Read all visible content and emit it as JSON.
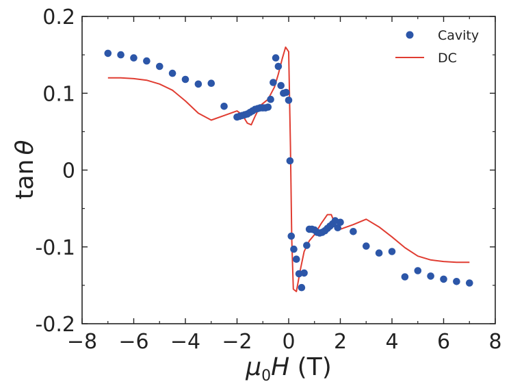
{
  "chart_data": {
    "type": "scatter",
    "xlabel_parts": {
      "mu": "μ",
      "sub": "0",
      "h": "H",
      "unit": " (T)"
    },
    "ylabel_parts": {
      "fn": "tan",
      "theta": "θ"
    },
    "xlim": [
      -8,
      8
    ],
    "ylim": [
      -0.2,
      0.2
    ],
    "x_ticks": [
      -8,
      -6,
      -4,
      -2,
      0,
      2,
      4,
      6,
      8
    ],
    "x_tick_labels": [
      "−8",
      "−6",
      "−4",
      "−2",
      "0",
      "2",
      "4",
      "6",
      "8"
    ],
    "y_ticks": [
      -0.2,
      -0.1,
      0,
      0.1,
      0.2
    ],
    "y_tick_labels": [
      "-0.2",
      "-0.1",
      "0",
      "0.1",
      "0.2"
    ],
    "grid": false,
    "legend_position": "top-right",
    "series": [
      {
        "name": "Cavity",
        "kind": "scatter",
        "color": "#2c56a8",
        "points": [
          [
            -7,
            0.152
          ],
          [
            -6.5,
            0.15
          ],
          [
            -6,
            0.146
          ],
          [
            -5.5,
            0.142
          ],
          [
            -5,
            0.135
          ],
          [
            -4.5,
            0.126
          ],
          [
            -4,
            0.118
          ],
          [
            -3.5,
            0.112
          ],
          [
            -3,
            0.113
          ],
          [
            -2.5,
            0.083
          ],
          [
            -2,
            0.069
          ],
          [
            -1.9,
            0.07
          ],
          [
            -1.8,
            0.071
          ],
          [
            -1.7,
            0.072
          ],
          [
            -1.6,
            0.073
          ],
          [
            -1.5,
            0.075
          ],
          [
            -1.4,
            0.077
          ],
          [
            -1.3,
            0.079
          ],
          [
            -1.2,
            0.08
          ],
          [
            -1.1,
            0.081
          ],
          [
            -1,
            0.081
          ],
          [
            -0.9,
            0.081
          ],
          [
            -0.8,
            0.082
          ],
          [
            -0.7,
            0.092
          ],
          [
            -0.6,
            0.114
          ],
          [
            -0.5,
            0.146
          ],
          [
            -0.4,
            0.135
          ],
          [
            -0.3,
            0.11
          ],
          [
            -0.2,
            0.1
          ],
          [
            -0.1,
            0.101
          ],
          [
            0,
            0.091
          ],
          [
            0.05,
            0.012
          ],
          [
            0.1,
            -0.086
          ],
          [
            0.2,
            -0.103
          ],
          [
            0.3,
            -0.116
          ],
          [
            0.4,
            -0.135
          ],
          [
            0.5,
            -0.153
          ],
          [
            0.6,
            -0.134
          ],
          [
            0.7,
            -0.098
          ],
          [
            0.8,
            -0.077
          ],
          [
            0.9,
            -0.077
          ],
          [
            1,
            -0.078
          ],
          [
            1.1,
            -0.081
          ],
          [
            1.2,
            -0.082
          ],
          [
            1.3,
            -0.081
          ],
          [
            1.4,
            -0.079
          ],
          [
            1.5,
            -0.076
          ],
          [
            1.6,
            -0.073
          ],
          [
            1.7,
            -0.07
          ],
          [
            1.8,
            -0.066
          ],
          [
            1.9,
            -0.075
          ],
          [
            2,
            -0.068
          ],
          [
            2.5,
            -0.08
          ],
          [
            3,
            -0.099
          ],
          [
            3.5,
            -0.108
          ],
          [
            4,
            -0.106
          ],
          [
            4.5,
            -0.139
          ],
          [
            5,
            -0.131
          ],
          [
            5.5,
            -0.138
          ],
          [
            6,
            -0.142
          ],
          [
            6.5,
            -0.145
          ],
          [
            7,
            -0.147
          ]
        ]
      },
      {
        "name": "DC",
        "kind": "line",
        "color": "#e03c31",
        "points": [
          [
            -7,
            0.12
          ],
          [
            -6.5,
            0.12
          ],
          [
            -6,
            0.119
          ],
          [
            -5.5,
            0.117
          ],
          [
            -5,
            0.112
          ],
          [
            -4.5,
            0.104
          ],
          [
            -4,
            0.09
          ],
          [
            -3.5,
            0.074
          ],
          [
            -3,
            0.065
          ],
          [
            -2.5,
            0.071
          ],
          [
            -2,
            0.077
          ],
          [
            -1.8,
            0.072
          ],
          [
            -1.6,
            0.061
          ],
          [
            -1.45,
            0.059
          ],
          [
            -1.3,
            0.07
          ],
          [
            -1.1,
            0.084
          ],
          [
            -0.8,
            0.092
          ],
          [
            -0.55,
            0.108
          ],
          [
            -0.4,
            0.125
          ],
          [
            -0.25,
            0.145
          ],
          [
            -0.12,
            0.16
          ],
          [
            0,
            0.154
          ],
          [
            0.07,
            0.03
          ],
          [
            0.12,
            -0.09
          ],
          [
            0.18,
            -0.155
          ],
          [
            0.3,
            -0.158
          ],
          [
            0.45,
            -0.13
          ],
          [
            0.6,
            -0.106
          ],
          [
            0.8,
            -0.092
          ],
          [
            1,
            -0.084
          ],
          [
            1.25,
            -0.07
          ],
          [
            1.5,
            -0.058
          ],
          [
            1.65,
            -0.058
          ],
          [
            1.85,
            -0.075
          ],
          [
            2,
            -0.077
          ],
          [
            2.5,
            -0.071
          ],
          [
            3,
            -0.064
          ],
          [
            3.5,
            -0.074
          ],
          [
            4,
            -0.087
          ],
          [
            4.5,
            -0.101
          ],
          [
            5,
            -0.112
          ],
          [
            5.5,
            -0.117
          ],
          [
            6,
            -0.119
          ],
          [
            6.5,
            -0.12
          ],
          [
            7,
            -0.12
          ]
        ]
      }
    ]
  }
}
